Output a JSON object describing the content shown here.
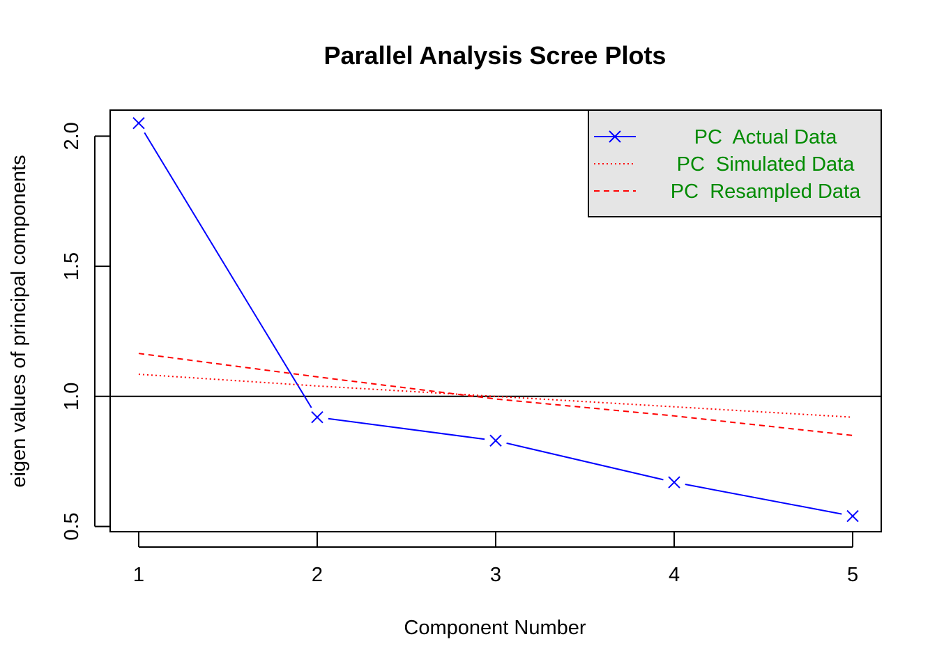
{
  "chart_data": {
    "type": "line",
    "title": "Parallel Analysis Scree Plots",
    "xlabel": "Component Number",
    "ylabel": "eigen values of principal components",
    "x": [
      1,
      2,
      3,
      4,
      5
    ],
    "x_ticks": [
      "1",
      "2",
      "3",
      "4",
      "5"
    ],
    "y_ticks": [
      "0.5",
      "1.0",
      "1.5",
      "2.0"
    ],
    "xlim": [
      0.84,
      5.16
    ],
    "ylim": [
      0.48,
      2.1
    ],
    "reference_line": 1.0,
    "legend_position": "top-right",
    "series": [
      {
        "name": "PC  Actual Data",
        "values": [
          2.05,
          0.92,
          0.83,
          0.67,
          0.54
        ],
        "color": "#0000ff",
        "style": "solid",
        "marker": "x"
      },
      {
        "name": "PC  Simulated Data",
        "values": [
          1.085,
          1.04,
          1.0,
          0.96,
          0.92
        ],
        "color": "#ff0000",
        "style": "dotted",
        "marker": "none"
      },
      {
        "name": "PC  Resampled Data",
        "values": [
          1.165,
          1.075,
          0.99,
          0.925,
          0.85
        ],
        "color": "#ff0000",
        "style": "dashed",
        "marker": "none"
      }
    ],
    "legend_text_color": "#008b00",
    "legend_background": "#e5e5e5"
  }
}
